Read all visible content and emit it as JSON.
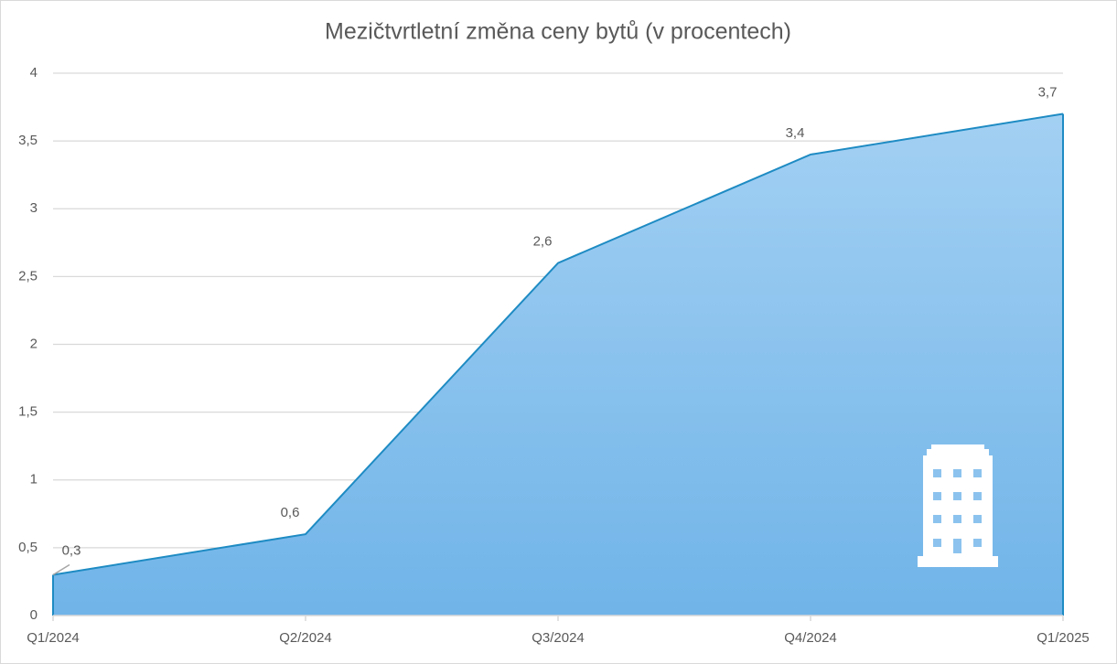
{
  "chart_data": {
    "type": "area",
    "title": "Mezičtvrtletní změna ceny bytů (v procentech)",
    "categories": [
      "Q1/2024",
      "Q2/2024",
      "Q3/2024",
      "Q4/2024",
      "Q1/2025"
    ],
    "values": [
      0.3,
      0.6,
      2.6,
      3.4,
      3.7
    ],
    "value_labels": [
      "0,3",
      "0,6",
      "2,6",
      "3,4",
      "3,7"
    ],
    "color": "#1e8bc3",
    "ylim": [
      0,
      4
    ],
    "yticks": [
      0,
      {
        "value": 0.5,
        "label": "0,5"
      },
      1,
      {
        "value": 1.5,
        "label": "1,5"
      },
      2,
      {
        "value": 2.5,
        "label": "2,5"
      },
      3,
      {
        "value": 3.5,
        "label": "3,5"
      },
      4
    ],
    "grid": true
  }
}
